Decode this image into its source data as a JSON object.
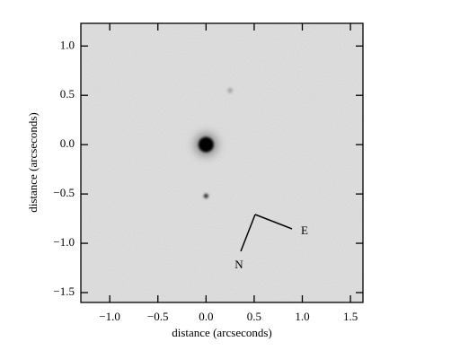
{
  "chart_data": {
    "type": "image",
    "xlabel": "distance (arcseconds)",
    "ylabel": "distance (arcseconds)",
    "xlim": [
      -1.3,
      1.63
    ],
    "ylim": [
      -1.6,
      1.23
    ],
    "xticks": [
      {
        "value": -1,
        "label": "−1.0"
      },
      {
        "value": -0.5,
        "label": "−0.5"
      },
      {
        "value": 0,
        "label": "0.0"
      },
      {
        "value": 0.5,
        "label": "0.5"
      },
      {
        "value": 1,
        "label": "1.0"
      },
      {
        "value": 1.5,
        "label": "1.5"
      }
    ],
    "yticks": [
      {
        "value": -1.5,
        "label": "−1.5"
      },
      {
        "value": -1,
        "label": "−1.0"
      },
      {
        "value": -0.5,
        "label": "−0.5"
      },
      {
        "value": 0,
        "label": "0.0"
      },
      {
        "value": 0.5,
        "label": "0.5"
      },
      {
        "value": 1,
        "label": "1.0"
      }
    ],
    "sources": {
      "x": [
        0,
        0,
        0.25
      ],
      "y": [
        0,
        -0.52,
        0.55
      ]
    },
    "annotations": [
      "N",
      "E"
    ]
  }
}
